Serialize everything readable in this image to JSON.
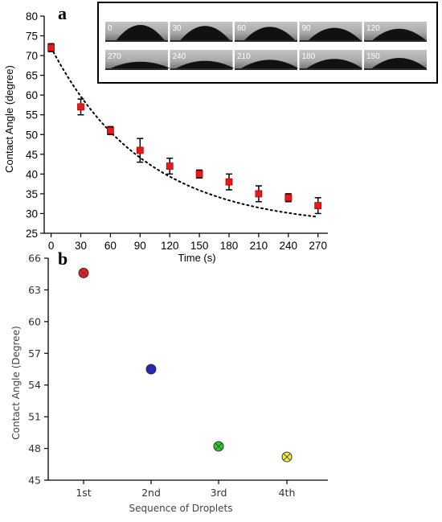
{
  "chart_data": [
    {
      "panel": "a",
      "type": "scatter",
      "xlabel": "Time (s)",
      "ylabel": "Contact Angle (degree)",
      "xlim": [
        -7,
        280
      ],
      "ylim": [
        25,
        80
      ],
      "xticks": [
        0,
        30,
        60,
        90,
        120,
        150,
        180,
        210,
        240,
        270
      ],
      "yticks": [
        25,
        30,
        35,
        40,
        45,
        50,
        55,
        60,
        65,
        70,
        75,
        80
      ],
      "marker_color": "#e41a1c",
      "fit_line": "dotted",
      "series": [
        {
          "x": [
            0,
            30,
            60,
            90,
            120,
            150,
            180,
            210,
            240,
            270
          ],
          "y": [
            72,
            57,
            51,
            46,
            42,
            40,
            38,
            35,
            34,
            32
          ],
          "err": [
            1,
            2,
            1,
            3,
            2,
            1,
            2,
            2,
            1,
            2
          ]
        }
      ],
      "inset": {
        "top_row": [
          "0",
          "30",
          "60",
          "90",
          "120"
        ],
        "bottom_row": [
          "270",
          "240",
          "210",
          "180",
          "150"
        ]
      }
    },
    {
      "panel": "b",
      "type": "scatter",
      "xlabel": "Sequence of Droplets",
      "ylabel": "Contact Angle (Degree)",
      "ylim": [
        45,
        66
      ],
      "yticks": [
        45,
        48,
        51,
        54,
        57,
        60,
        63,
        66
      ],
      "categories": [
        "1st",
        "2nd",
        "3rd",
        "4th"
      ],
      "values": [
        64.6,
        55.5,
        48.2,
        47.2
      ],
      "colors": [
        "#ee1c1c",
        "#1f1fd6",
        "#2ccc2c",
        "#eeee44"
      ]
    }
  ]
}
